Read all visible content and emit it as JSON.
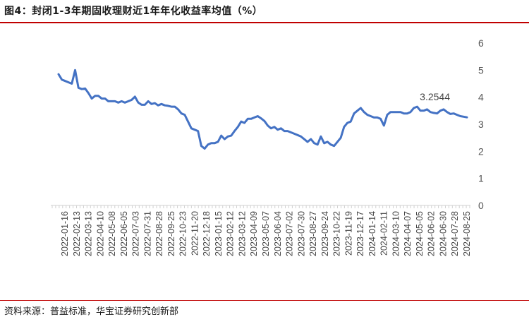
{
  "header": {
    "title": "图4：封闭1-3年期固收理财近1年年化收益率均值（%）"
  },
  "footer": {
    "source": "资料来源：普益标准，华宝证券研究创新部"
  },
  "chart_data": {
    "type": "line",
    "title": "图4：封闭1-3年期固收理财近1年年化收益率均值（%）",
    "xlabel": "",
    "ylabel": "",
    "ylim": [
      0,
      6
    ],
    "yticks": [
      0,
      1,
      2,
      3,
      4,
      5,
      6
    ],
    "y_axis_position": "right",
    "grid": false,
    "legend": "none",
    "line_color": "#4472c4",
    "xtick_labels": [
      "2022-01-16",
      "2022-02-13",
      "2022-03-13",
      "2022-04-10",
      "2022-05-08",
      "2022-06-05",
      "2022-07-03",
      "2022-07-31",
      "2022-08-28",
      "2022-09-25",
      "2022-10-23",
      "2022-11-20",
      "2022-12-18",
      "2023-01-15",
      "2023-02-12",
      "2023-03-12",
      "2023-04-09",
      "2023-05-07",
      "2023-06-04",
      "2023-07-02",
      "2023-07-30",
      "2023-08-27",
      "2023-09-24",
      "2023-10-22",
      "2023-11-19",
      "2023-12-17",
      "2024-01-14",
      "2024-02-11",
      "2024-03-10",
      "2024-04-07",
      "2024-05-05",
      "2024-06-02",
      "2024-06-30",
      "2024-07-28",
      "2024-08-25"
    ],
    "series": [
      {
        "values": [
          4.85,
          4.65,
          4.6,
          4.55,
          4.5,
          5.0,
          4.35,
          4.3,
          4.32,
          4.15,
          3.95,
          4.05,
          4.05,
          3.95,
          3.95,
          3.85,
          3.85,
          3.85,
          3.8,
          3.85,
          3.8,
          3.85,
          3.9,
          4.02,
          3.8,
          3.72,
          3.72,
          3.85,
          3.75,
          3.78,
          3.7,
          3.75,
          3.7,
          3.68,
          3.65,
          3.65,
          3.55,
          3.4,
          3.35,
          3.1,
          2.85,
          2.8,
          2.75,
          2.2,
          2.1,
          2.25,
          2.3,
          2.3,
          2.35,
          2.58,
          2.45,
          2.55,
          2.58,
          2.75,
          2.9,
          3.1,
          3.05,
          3.2,
          3.2,
          3.25,
          3.3,
          3.22,
          3.12,
          2.95,
          2.85,
          2.9,
          2.8,
          2.85,
          2.75,
          2.75,
          2.7,
          2.65,
          2.6,
          2.55,
          2.45,
          2.35,
          2.45,
          2.3,
          2.25,
          2.55,
          2.3,
          2.35,
          2.25,
          2.2,
          2.35,
          2.5,
          2.9,
          3.05,
          3.1,
          3.4,
          3.5,
          3.6,
          3.45,
          3.35,
          3.3,
          3.25,
          3.25,
          3.2,
          2.95,
          3.35,
          3.45,
          3.45,
          3.45,
          3.45,
          3.4,
          3.4,
          3.45,
          3.6,
          3.65,
          3.5,
          3.5,
          3.55,
          3.45,
          3.42,
          3.4,
          3.5,
          3.55,
          3.45,
          3.38,
          3.4,
          3.35,
          3.3,
          3.28,
          3.2544
        ]
      }
    ],
    "data_labels": [
      {
        "text": "3.2544"
      }
    ]
  }
}
